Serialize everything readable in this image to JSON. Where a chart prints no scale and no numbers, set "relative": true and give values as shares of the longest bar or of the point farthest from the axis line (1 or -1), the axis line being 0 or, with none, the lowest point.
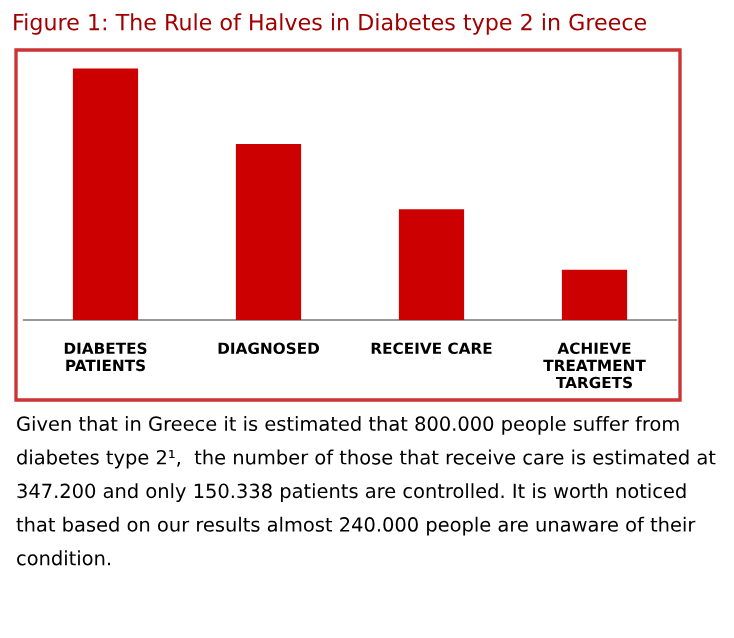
{
  "chart_data": {
    "type": "bar",
    "title": "Figure 1: The Rule of Halves in Diabetes type 2 in Greece",
    "categories": [
      "DIABETES\nPATIENTS",
      "DIAGNOSED",
      "RECEIVE CARE",
      "ACHIEVE\nTREATMENT\nTARGETS"
    ],
    "values": [
      1,
      0.7,
      0.44,
      0.2
    ],
    "color": "#cc0000",
    "relative": true,
    "annotations": [
      "Given that in Greece it is estimated that 800.000 people suffer from diabetes type 2¹,  the number of those that receive care is estimated at 347.200 and only 150.338 patients are controlled. It is worth noticed that based on our results almost 240.000 people are unaware of their condition."
    ]
  }
}
